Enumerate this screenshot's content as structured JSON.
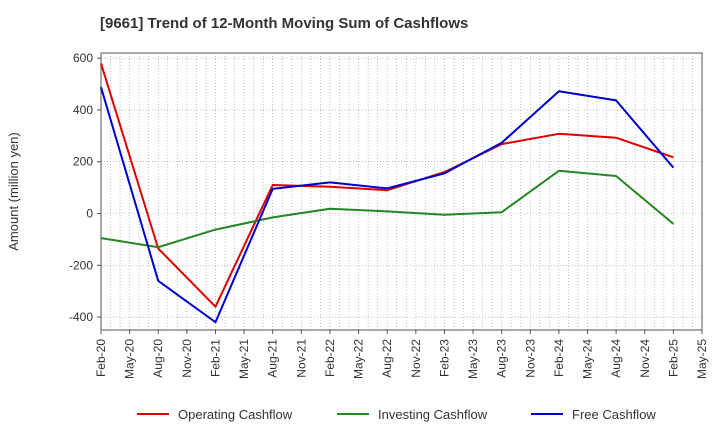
{
  "chart_data": {
    "type": "line",
    "title": "[9661]  Trend of 12-Month Moving Sum of Cashflows",
    "xlabel": "",
    "ylabel": "Amount (million yen)",
    "ylim": [
      -450,
      620
    ],
    "yticks": [
      -400,
      -200,
      0,
      200,
      400,
      600
    ],
    "categories": [
      "Feb-20",
      "May-20",
      "Aug-20",
      "Nov-20",
      "Feb-21",
      "May-21",
      "Aug-21",
      "Nov-21",
      "Feb-22",
      "May-22",
      "Aug-22",
      "Nov-22",
      "Feb-23",
      "May-23",
      "Aug-23",
      "Nov-23",
      "Feb-24",
      "May-24",
      "Aug-24",
      "Nov-24",
      "Feb-25",
      "May-25"
    ],
    "grid": true,
    "legend_position": "bottom",
    "series": [
      {
        "name": "Operating Cashflow",
        "color": "#dd0000",
        "values": [
          580,
          null,
          -135,
          null,
          -360,
          null,
          110,
          null,
          103,
          null,
          90,
          null,
          160,
          null,
          268,
          null,
          308,
          null,
          293,
          null,
          217,
          null
        ]
      },
      {
        "name": "Investing Cashflow",
        "color": "#228822",
        "values": [
          -95,
          null,
          -130,
          null,
          -62,
          null,
          -15,
          null,
          18,
          null,
          8,
          null,
          -5,
          null,
          5,
          null,
          165,
          null,
          145,
          null,
          -40,
          null
        ]
      },
      {
        "name": "Free Cashflow",
        "color": "#0000cc",
        "values": [
          488,
          null,
          -260,
          null,
          -420,
          null,
          95,
          null,
          120,
          null,
          97,
          null,
          155,
          null,
          273,
          null,
          472,
          null,
          437,
          null,
          177,
          null
        ]
      }
    ]
  }
}
